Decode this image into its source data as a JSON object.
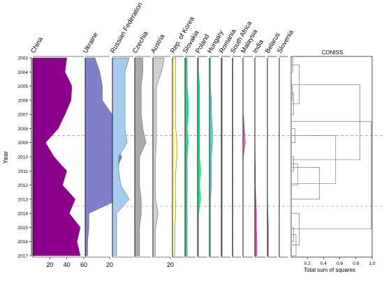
{
  "chart_data": {
    "type": "area",
    "ylabel": "Year",
    "years": [
      2003,
      2004,
      2005,
      2006,
      2007,
      2008,
      2009,
      2010,
      2011,
      2012,
      2013,
      2014,
      2015,
      2016,
      2017
    ],
    "zone_boundaries": [
      2008.5,
      2013.5
    ],
    "panels": [
      {
        "name": "China",
        "color": "#8b008b",
        "xmax": 60,
        "ticks": [
          "20",
          "40",
          "60"
        ],
        "values": [
          40,
          38,
          46,
          45,
          38,
          30,
          15,
          25,
          40,
          35,
          50,
          43,
          56,
          52,
          56
        ]
      },
      {
        "name": "Ukraine",
        "color": "#8080c8",
        "xmax": 20,
        "ticks": [
          "20"
        ],
        "values": [
          8,
          12,
          14,
          14,
          22,
          27,
          22,
          30,
          25,
          27,
          28,
          3,
          3,
          2,
          2
        ]
      },
      {
        "name": "Russian Federation",
        "color": "#a6cbef",
        "xmax": 10,
        "ticks": [],
        "values": [
          8,
          6,
          6,
          6,
          6,
          6,
          7,
          3,
          3,
          4,
          8,
          2,
          2,
          2,
          2
        ]
      },
      {
        "name": "Czechia",
        "color": "#aaaaaa",
        "xmax": 10,
        "ticks": [],
        "values": [
          5,
          5,
          4,
          4,
          4,
          5,
          7,
          3,
          3,
          3,
          4,
          4,
          3,
          3,
          3
        ]
      },
      {
        "name": "Austria",
        "color": "#d0d0d0",
        "xmax": 20,
        "ticks": [
          "20"
        ],
        "values": [
          13,
          10,
          4,
          4,
          4,
          4,
          4,
          3,
          3,
          3,
          3,
          6,
          3,
          3,
          3
        ]
      },
      {
        "name": "Rep. of Korea",
        "color": "#ffffa0",
        "xmax": 10,
        "ticks": [],
        "values": [
          3,
          3,
          3,
          3,
          3,
          3,
          4,
          4,
          3,
          3,
          3,
          3,
          2,
          2,
          2
        ]
      },
      {
        "name": "Slovakia",
        "color": "#20e090",
        "xmax": 10,
        "ticks": [],
        "values": [
          2,
          2,
          2,
          3,
          3,
          2,
          3,
          2,
          2,
          2,
          2,
          2,
          2,
          2,
          2
        ]
      },
      {
        "name": "Poland",
        "color": "#00ff80",
        "xmax": 10,
        "ticks": [],
        "values": [
          1,
          1,
          2,
          2,
          2,
          2,
          2,
          2,
          3,
          2,
          3,
          1,
          1,
          1,
          1
        ]
      },
      {
        "name": "Hungary",
        "color": "#40e0d0",
        "xmax": 10,
        "ticks": [],
        "values": [
          1,
          1,
          1,
          2,
          2,
          3,
          3,
          2,
          2,
          2,
          1,
          1,
          1,
          1,
          1
        ]
      },
      {
        "name": "Romania",
        "color": "#3090f0",
        "xmax": 10,
        "ticks": [],
        "values": [
          1,
          1,
          1,
          1,
          1,
          1,
          1,
          1,
          1,
          1,
          1,
          1,
          1,
          1,
          1
        ]
      },
      {
        "name": "South Africa",
        "color": "#6060b0",
        "xmax": 10,
        "ticks": [],
        "values": [
          0.5,
          0.5,
          0.5,
          0.5,
          0.5,
          0.5,
          0.5,
          0.5,
          0.5,
          0.5,
          0.5,
          0.5,
          0.5,
          0.5,
          0.5
        ]
      },
      {
        "name": "Malaysia",
        "color": "#e070e0",
        "xmax": 10,
        "ticks": [],
        "values": [
          0.2,
          0.2,
          0.2,
          0.2,
          0.2,
          1.5,
          2.5,
          0.2,
          0.2,
          0.2,
          0.2,
          0.2,
          0.2,
          0.2,
          0.2
        ]
      },
      {
        "name": "India",
        "color": "#ff40b0",
        "xmax": 10,
        "ticks": [],
        "values": [
          0.2,
          0.2,
          0.2,
          0.2,
          0.2,
          0.2,
          0.2,
          0.3,
          0.5,
          0.5,
          1,
          1.5,
          1.5,
          2,
          2
        ]
      },
      {
        "name": "Belarus",
        "color": "#ff6060",
        "xmax": 10,
        "ticks": [],
        "values": [
          0.2,
          0.2,
          0.2,
          0.2,
          0.2,
          0.2,
          0.2,
          0.2,
          0.2,
          0.2,
          0.2,
          0.5,
          1,
          1,
          1
        ]
      },
      {
        "name": "Slovenia",
        "color": "#aaaaaa",
        "xmax": 10,
        "ticks": [],
        "values": [
          0,
          0,
          0,
          0,
          0,
          0,
          0,
          0,
          0,
          0,
          0,
          0,
          0,
          0,
          0
        ]
      }
    ],
    "coniss": {
      "title": "CONISS",
      "xlabel": "Total sum of squares",
      "ticks": [
        "0.2",
        "0.4",
        "0.6",
        "0.8",
        "1.0"
      ],
      "tick_values": [
        0.2,
        0.4,
        0.6,
        0.8,
        1.0
      ],
      "xlim": [
        0,
        1.0
      ]
    }
  }
}
